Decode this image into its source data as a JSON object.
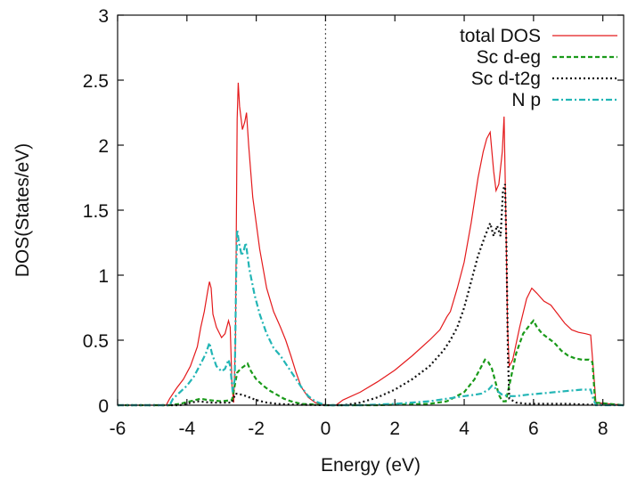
{
  "chart_data": {
    "type": "line",
    "xlabel": "Energy (eV)",
    "ylabel": "DOS(States/eV)",
    "xlim": [
      -6,
      8.6
    ],
    "ylim": [
      0,
      3
    ],
    "xticks": [
      -6,
      -4,
      -2,
      0,
      2,
      4,
      6,
      8
    ],
    "yticks": [
      0,
      0.5,
      1,
      1.5,
      2,
      2.5,
      3
    ],
    "xtick_labels": [
      "-6",
      "-4",
      "-2",
      "0",
      "2",
      "4",
      "6",
      "8"
    ],
    "ytick_labels": [
      "0",
      "0.5",
      "1",
      "1.5",
      "2",
      "2.5",
      "3"
    ],
    "fermi_level": 0,
    "grid": false,
    "legend_position": "top-right",
    "series": [
      {
        "name": "total DOS",
        "color": "#e41a1c",
        "dash": "solid",
        "points": [
          [
            -6,
            0
          ],
          [
            -4.6,
            0
          ],
          [
            -4.5,
            0.05
          ],
          [
            -4.3,
            0.13
          ],
          [
            -4.1,
            0.2
          ],
          [
            -3.9,
            0.3
          ],
          [
            -3.7,
            0.45
          ],
          [
            -3.6,
            0.6
          ],
          [
            -3.5,
            0.72
          ],
          [
            -3.4,
            0.88
          ],
          [
            -3.35,
            0.95
          ],
          [
            -3.3,
            0.9
          ],
          [
            -3.25,
            0.7
          ],
          [
            -3.15,
            0.6
          ],
          [
            -3.0,
            0.52
          ],
          [
            -2.9,
            0.55
          ],
          [
            -2.8,
            0.65
          ],
          [
            -2.75,
            0.6
          ],
          [
            -2.7,
            0.15
          ],
          [
            -2.65,
            0.02
          ],
          [
            -2.6,
            0.5
          ],
          [
            -2.55,
            2.2
          ],
          [
            -2.52,
            2.48
          ],
          [
            -2.48,
            2.3
          ],
          [
            -2.4,
            2.12
          ],
          [
            -2.33,
            2.18
          ],
          [
            -2.28,
            2.25
          ],
          [
            -2.22,
            2.0
          ],
          [
            -2.1,
            1.6
          ],
          [
            -1.9,
            1.2
          ],
          [
            -1.7,
            0.9
          ],
          [
            -1.5,
            0.72
          ],
          [
            -1.3,
            0.6
          ],
          [
            -1.15,
            0.5
          ],
          [
            -1.0,
            0.38
          ],
          [
            -0.85,
            0.25
          ],
          [
            -0.7,
            0.14
          ],
          [
            -0.5,
            0.06
          ],
          [
            -0.3,
            0.02
          ],
          [
            0,
            0
          ],
          [
            0.3,
            0
          ],
          [
            0.5,
            0.04
          ],
          [
            1.0,
            0.1
          ],
          [
            1.5,
            0.18
          ],
          [
            2.0,
            0.27
          ],
          [
            2.5,
            0.38
          ],
          [
            3.0,
            0.5
          ],
          [
            3.3,
            0.58
          ],
          [
            3.5,
            0.68
          ],
          [
            3.6,
            0.72
          ],
          [
            3.8,
            0.9
          ],
          [
            4.0,
            1.1
          ],
          [
            4.2,
            1.4
          ],
          [
            4.4,
            1.75
          ],
          [
            4.55,
            1.95
          ],
          [
            4.65,
            2.05
          ],
          [
            4.75,
            2.1
          ],
          [
            4.85,
            1.8
          ],
          [
            4.92,
            1.65
          ],
          [
            5.0,
            1.7
          ],
          [
            5.1,
            1.95
          ],
          [
            5.15,
            2.22
          ],
          [
            5.2,
            1.5
          ],
          [
            5.25,
            0.6
          ],
          [
            5.3,
            0.3
          ],
          [
            5.4,
            0.35
          ],
          [
            5.6,
            0.6
          ],
          [
            5.8,
            0.82
          ],
          [
            5.95,
            0.9
          ],
          [
            6.1,
            0.86
          ],
          [
            6.3,
            0.8
          ],
          [
            6.5,
            0.77
          ],
          [
            6.7,
            0.7
          ],
          [
            6.9,
            0.63
          ],
          [
            7.1,
            0.58
          ],
          [
            7.3,
            0.56
          ],
          [
            7.5,
            0.55
          ],
          [
            7.65,
            0.54
          ],
          [
            7.75,
            0.2
          ],
          [
            7.8,
            0.02
          ],
          [
            8.6,
            0
          ]
        ]
      },
      {
        "name": "Sc d-eg",
        "color": "#1a9a1a",
        "dash": "dashed",
        "points": [
          [
            -6,
            0
          ],
          [
            -4.5,
            0
          ],
          [
            -4.2,
            0.01
          ],
          [
            -3.9,
            0.03
          ],
          [
            -3.6,
            0.05
          ],
          [
            -3.4,
            0.04
          ],
          [
            -3.0,
            0.03
          ],
          [
            -2.7,
            0.04
          ],
          [
            -2.6,
            0.18
          ],
          [
            -2.55,
            0.25
          ],
          [
            -2.45,
            0.28
          ],
          [
            -2.35,
            0.3
          ],
          [
            -2.25,
            0.32
          ],
          [
            -2.15,
            0.26
          ],
          [
            -2.0,
            0.2
          ],
          [
            -1.8,
            0.15
          ],
          [
            -1.6,
            0.11
          ],
          [
            -1.4,
            0.08
          ],
          [
            -1.2,
            0.05
          ],
          [
            -1.0,
            0.03
          ],
          [
            -0.7,
            0.01
          ],
          [
            0,
            0
          ],
          [
            1.5,
            0
          ],
          [
            3.0,
            0.01
          ],
          [
            3.5,
            0.03
          ],
          [
            4.0,
            0.1
          ],
          [
            4.3,
            0.2
          ],
          [
            4.5,
            0.3
          ],
          [
            4.6,
            0.35
          ],
          [
            4.7,
            0.33
          ],
          [
            4.8,
            0.28
          ],
          [
            4.9,
            0.18
          ],
          [
            5.0,
            0.08
          ],
          [
            5.1,
            0.03
          ],
          [
            5.2,
            0.03
          ],
          [
            5.3,
            0.15
          ],
          [
            5.5,
            0.4
          ],
          [
            5.7,
            0.55
          ],
          [
            5.9,
            0.62
          ],
          [
            6.0,
            0.65
          ],
          [
            6.1,
            0.6
          ],
          [
            6.25,
            0.55
          ],
          [
            6.4,
            0.52
          ],
          [
            6.6,
            0.48
          ],
          [
            6.8,
            0.42
          ],
          [
            7.0,
            0.38
          ],
          [
            7.2,
            0.36
          ],
          [
            7.4,
            0.35
          ],
          [
            7.6,
            0.35
          ],
          [
            7.7,
            0.33
          ],
          [
            7.78,
            0.02
          ],
          [
            8.6,
            0
          ]
        ]
      },
      {
        "name": "Sc d-t2g",
        "color": "#111111",
        "dash": "dotted",
        "points": [
          [
            -6,
            0
          ],
          [
            -4.2,
            0
          ],
          [
            -3.7,
            0.03
          ],
          [
            -3.3,
            0.02
          ],
          [
            -2.9,
            0.02
          ],
          [
            -2.7,
            0.02
          ],
          [
            -2.6,
            0.09
          ],
          [
            -2.4,
            0.08
          ],
          [
            -2.2,
            0.06
          ],
          [
            -2.0,
            0.04
          ],
          [
            -1.7,
            0.02
          ],
          [
            -1.4,
            0.01
          ],
          [
            -1.0,
            0.005
          ],
          [
            0,
            0
          ],
          [
            0.5,
            0
          ],
          [
            1.0,
            0.02
          ],
          [
            1.5,
            0.06
          ],
          [
            2.0,
            0.12
          ],
          [
            2.5,
            0.2
          ],
          [
            3.0,
            0.3
          ],
          [
            3.4,
            0.42
          ],
          [
            3.6,
            0.5
          ],
          [
            3.8,
            0.6
          ],
          [
            4.0,
            0.75
          ],
          [
            4.2,
            0.95
          ],
          [
            4.4,
            1.15
          ],
          [
            4.6,
            1.3
          ],
          [
            4.75,
            1.4
          ],
          [
            4.85,
            1.3
          ],
          [
            4.95,
            1.38
          ],
          [
            5.05,
            1.3
          ],
          [
            5.12,
            1.65
          ],
          [
            5.18,
            1.7
          ],
          [
            5.22,
            1.2
          ],
          [
            5.26,
            0.4
          ],
          [
            5.3,
            0.05
          ],
          [
            5.5,
            0.02
          ],
          [
            5.8,
            0.01
          ],
          [
            6.5,
            0.01
          ],
          [
            7.0,
            0.01
          ],
          [
            7.5,
            0.005
          ],
          [
            7.7,
            0.005
          ],
          [
            8.6,
            0
          ]
        ]
      },
      {
        "name": "N p",
        "color": "#22b5b5",
        "dash": "dashdot",
        "points": [
          [
            -6,
            0
          ],
          [
            -4.5,
            0
          ],
          [
            -4.4,
            0.05
          ],
          [
            -4.2,
            0.1
          ],
          [
            -4.0,
            0.15
          ],
          [
            -3.8,
            0.22
          ],
          [
            -3.6,
            0.32
          ],
          [
            -3.45,
            0.4
          ],
          [
            -3.35,
            0.48
          ],
          [
            -3.28,
            0.4
          ],
          [
            -3.15,
            0.3
          ],
          [
            -3.0,
            0.26
          ],
          [
            -2.9,
            0.28
          ],
          [
            -2.8,
            0.35
          ],
          [
            -2.75,
            0.3
          ],
          [
            -2.68,
            0.1
          ],
          [
            -2.62,
            0.2
          ],
          [
            -2.58,
            1.0
          ],
          [
            -2.55,
            1.35
          ],
          [
            -2.5,
            1.25
          ],
          [
            -2.42,
            1.15
          ],
          [
            -2.35,
            1.2
          ],
          [
            -2.3,
            1.25
          ],
          [
            -2.2,
            1.05
          ],
          [
            -2.05,
            0.85
          ],
          [
            -1.9,
            0.7
          ],
          [
            -1.7,
            0.55
          ],
          [
            -1.5,
            0.44
          ],
          [
            -1.3,
            0.38
          ],
          [
            -1.1,
            0.3
          ],
          [
            -0.9,
            0.22
          ],
          [
            -0.7,
            0.14
          ],
          [
            -0.5,
            0.07
          ],
          [
            -0.3,
            0.03
          ],
          [
            0,
            0
          ],
          [
            1.0,
            0
          ],
          [
            2.0,
            0.01
          ],
          [
            3.0,
            0.03
          ],
          [
            3.5,
            0.05
          ],
          [
            4.0,
            0.07
          ],
          [
            4.3,
            0.08
          ],
          [
            4.5,
            0.09
          ],
          [
            4.7,
            0.12
          ],
          [
            4.8,
            0.15
          ],
          [
            4.9,
            0.13
          ],
          [
            5.0,
            0.1
          ],
          [
            5.1,
            0.08
          ],
          [
            5.3,
            0.07
          ],
          [
            5.5,
            0.07
          ],
          [
            5.8,
            0.08
          ],
          [
            6.2,
            0.09
          ],
          [
            6.6,
            0.1
          ],
          [
            7.0,
            0.11
          ],
          [
            7.4,
            0.12
          ],
          [
            7.65,
            0.12
          ],
          [
            7.72,
            0.05
          ],
          [
            7.8,
            0.0
          ],
          [
            8.6,
            0
          ]
        ]
      }
    ]
  }
}
